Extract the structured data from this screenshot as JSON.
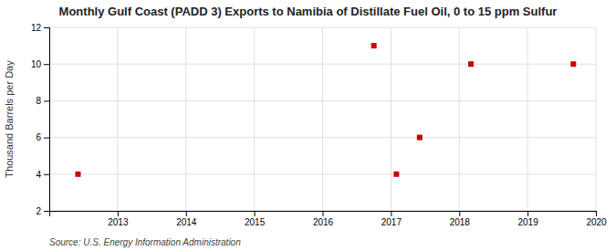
{
  "chart_data": {
    "type": "scatter",
    "title": "Monthly Gulf Coast (PADD 3) Exports to Namibia of Distillate Fuel Oil, 0 to 15 ppm Sulfur",
    "ylabel": "Thousand Barrels per Day",
    "source": "Source: U.S. Energy Information Administration",
    "x": [
      2012.42,
      2016.75,
      2017.08,
      2017.42,
      2018.17,
      2019.67
    ],
    "values": [
      4,
      11,
      4,
      6,
      10,
      10
    ],
    "color": "#cc0000",
    "marker": "square",
    "xlim": [
      2012,
      2020
    ],
    "ylim": [
      2,
      12
    ],
    "xticks": [
      2013,
      2014,
      2015,
      2016,
      2017,
      2018,
      2019,
      2020
    ],
    "yticks": [
      2,
      4,
      6,
      8,
      10,
      12
    ],
    "grid": true
  }
}
